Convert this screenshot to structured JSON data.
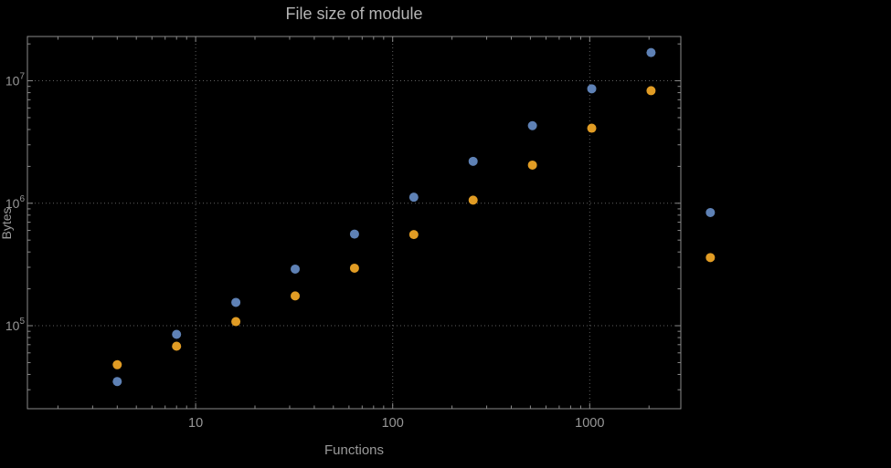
{
  "chart_data": {
    "type": "scatter",
    "title": "File size of module",
    "xlabel": "Functions",
    "ylabel": "Bytes",
    "x_scale": "log",
    "y_scale": "log",
    "xlim": [
      1.4,
      2900
    ],
    "ylim": [
      21000,
      23000000
    ],
    "grid": "dotted",
    "legend": "none",
    "x_ticks": [
      {
        "v": 10,
        "label": "10"
      },
      {
        "v": 100,
        "label": "100"
      },
      {
        "v": 1000,
        "label": "1000"
      }
    ],
    "y_ticks": [
      {
        "v": 100000,
        "base": "10",
        "exp": "5"
      },
      {
        "v": 1000000,
        "base": "10",
        "exp": "6"
      },
      {
        "v": 10000000,
        "base": "10",
        "exp": "7"
      }
    ],
    "x": [
      4,
      8,
      16,
      32,
      64,
      128,
      256,
      512,
      1024,
      2048,
      4096
    ],
    "series": [
      {
        "name": "blue",
        "color": "#5E81B5",
        "values": [
          35000,
          85000,
          155000,
          290000,
          560000,
          1120000,
          2200000,
          4300000,
          8600000,
          17000000,
          840000
        ]
      },
      {
        "name": "orange",
        "color": "#E19C24",
        "values": [
          48000,
          68000,
          108000,
          175000,
          295000,
          555000,
          1060000,
          2050000,
          4100000,
          8300000,
          360000
        ]
      }
    ],
    "style": {
      "background": "#000000",
      "grid_color": "#606060",
      "frame_color": "#8a8a8a",
      "tick_label_color": "#979797",
      "axis_label_color": "#9a9a9a",
      "title_color": "#b5b5b5",
      "point_radius": 5
    }
  }
}
